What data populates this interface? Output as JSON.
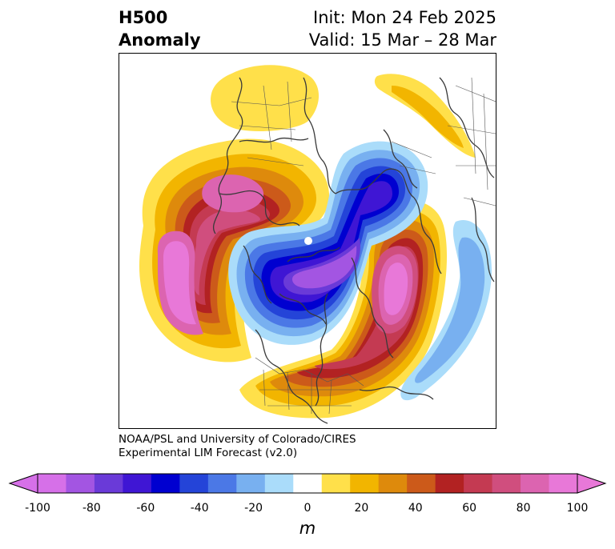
{
  "title": {
    "left_line1": "H500",
    "left_line2": "Anomaly",
    "right_line1": "Init: Mon 24 Feb 2025",
    "right_line2": "Valid: 15 Mar – 28 Mar"
  },
  "credit": {
    "line1": "NOAA/PSL and University of Colorado/CIRES",
    "line2": "Experimental LIM Forecast (v2.0)"
  },
  "colorbar": {
    "unit": "m",
    "tick_labels": [
      "-100",
      "-80",
      "-60",
      "-40",
      "-20",
      "0",
      "20",
      "40",
      "60",
      "80",
      "100"
    ],
    "colors": [
      "#d670e8",
      "#a355e2",
      "#6a3ad8",
      "#3f16d4",
      "#0000d0",
      "#2444d8",
      "#4b78e6",
      "#78b0f0",
      "#aadcfa",
      "#ffffff",
      "#ffe04a",
      "#f2b500",
      "#de8a0c",
      "#cc5a1a",
      "#b22222",
      "#c43a52",
      "#d04e7e",
      "#dc64b0",
      "#e878d8"
    ],
    "extend_min_color": "#d670e8",
    "extend_max_color": "#e878d8"
  }
}
